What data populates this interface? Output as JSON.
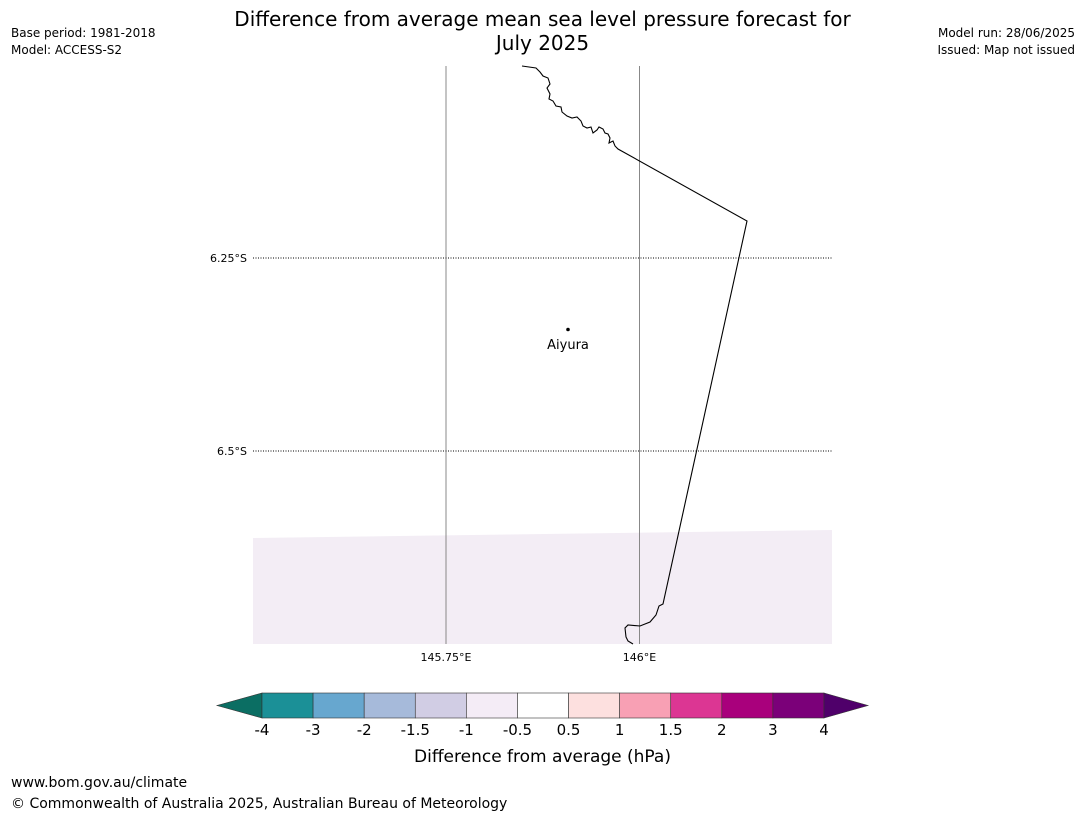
{
  "header": {
    "title_line1": "Difference from average mean sea level pressure forecast for",
    "title_line2": "July 2025",
    "base_period": "Base period: 1981-2018",
    "model": "Model: ACCESS-S2",
    "model_run": "Model run: 28/06/2025",
    "issued": "Issued: Map not issued"
  },
  "map": {
    "lat_labels": [
      "6.25°S",
      "6.5°S"
    ],
    "lon_labels": [
      "145.75°E",
      "146°E"
    ],
    "place_name": "Aiyura",
    "anomaly_fill_color": "#f3edf5",
    "anomaly_band": "-0.5 to 0.5 hPa"
  },
  "colorbar": {
    "label": "Difference from average (hPa)",
    "ticks": [
      "-4",
      "-3",
      "-2",
      "-1.5",
      "-1",
      "-0.5",
      "0.5",
      "1",
      "1.5",
      "2",
      "3",
      "4"
    ],
    "colors": {
      "below_min": "#0b6e63",
      "bins": [
        "#1b9097",
        "#67a7cf",
        "#a6bada",
        "#d1cde4",
        "#f4ecf6",
        "#ffffff",
        "#fde0df",
        "#f8a0b4",
        "#dc3693",
        "#a9007c",
        "#7b0079"
      ],
      "above_max": "#4f006a"
    }
  },
  "footer": {
    "url": "www.bom.gov.au/climate",
    "copyright": "© Commonwealth of Australia 2025, Australian Bureau of Meteorology"
  }
}
